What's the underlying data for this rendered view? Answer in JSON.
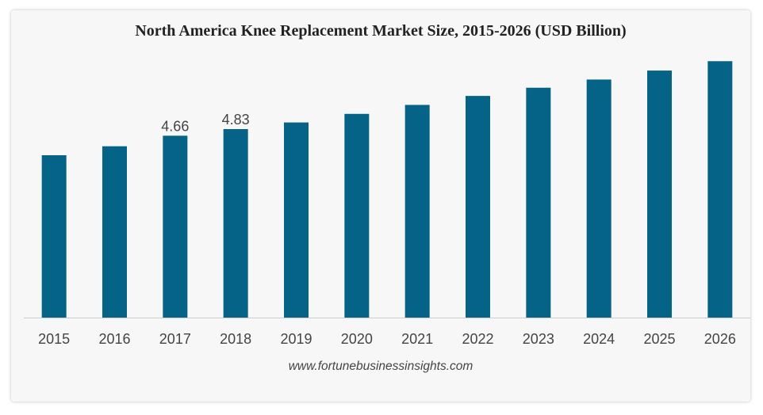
{
  "chart_data": {
    "type": "bar",
    "title": "North America Knee Replacement Market Size, 2015-2026 (USD Billion)",
    "categories": [
      "2015",
      "2016",
      "2017",
      "2018",
      "2019",
      "2020",
      "2021",
      "2022",
      "2023",
      "2024",
      "2025",
      "2026"
    ],
    "values": [
      4.16,
      4.39,
      4.66,
      4.83,
      5.0,
      5.22,
      5.45,
      5.68,
      5.89,
      6.1,
      6.33,
      6.57
    ],
    "data_labels": [
      "",
      "",
      "4.66",
      "4.83",
      "",
      "",
      "",
      "",
      "",
      "",
      "",
      ""
    ],
    "xlabel": "",
    "ylabel": "",
    "ylim": [
      0,
      6.9
    ],
    "grid": false,
    "legend": "none",
    "bar_color": "#066388",
    "axis_color": "#cccccc"
  },
  "source": "www.fortunebusinessinsights.com"
}
